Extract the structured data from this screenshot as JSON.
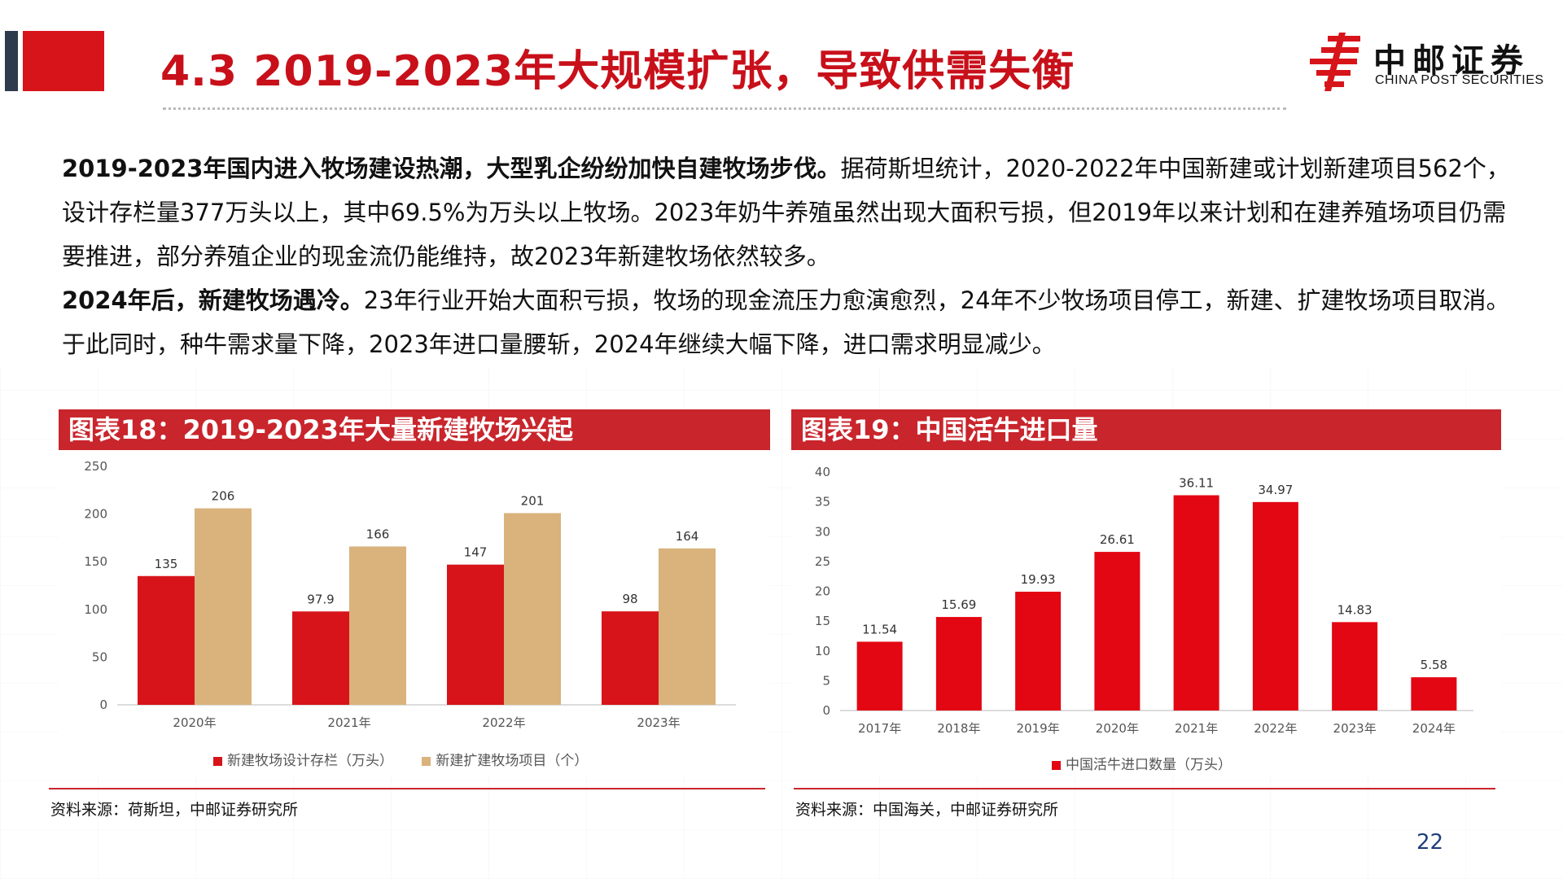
{
  "header": {
    "title": "4.3 2019-2023年大规模扩张，导致供需失衡",
    "brand_color": "#d7141a",
    "title_color": "#c8101a"
  },
  "logo": {
    "name_cn": "中邮证券",
    "name_en": "CHINA POST SECURITIES"
  },
  "body": {
    "p1_bold": "2019-2023年国内进入牧场建设热潮，大型乳企纷纷加快自建牧场步伐。",
    "p1_text": "据荷斯坦统计，2020-2022年中国新建或计划新建项目562个，设计存栏量377万头以上，其中69.5%为万头以上牧场。2023年奶牛养殖虽然出现大面积亏损，但2019年以来计划和在建养殖场项目仍需要推进，部分养殖企业的现金流仍能维持，故2023年新建牧场依然较多。",
    "p2_bold": "2024年后，新建牧场遇冷。",
    "p2_text": "23年行业开始大面积亏损，牧场的现金流压力愈演愈烈，24年不少牧场项目停工，新建、扩建牧场项目取消。于此同时，种牛需求量下降，2023年进口量腰斩，2024年继续大幅下降，进口需求明显减少。"
  },
  "chart18": {
    "header": "图表18：2019-2023年大量新建牧场兴起",
    "legend": [
      "新建牧场设计存栏（万头）",
      "新建扩建牧场项目（个）"
    ],
    "source": "资料来源：荷斯坦，中邮证券研究所"
  },
  "chart19": {
    "header": "图表19：中国活牛进口量",
    "legend": [
      "中国活牛进口数量（万头）"
    ],
    "source": "资料来源：中国海关，中邮证券研究所"
  },
  "page_number": "22",
  "chart_data": [
    {
      "type": "bar",
      "categories": [
        "2020年",
        "2021年",
        "2022年",
        "2023年"
      ],
      "series": [
        {
          "name": "新建牧场设计存栏（万头）",
          "values": [
            135,
            97.9,
            147,
            98
          ],
          "labels": [
            "135",
            "97.9",
            "147",
            "98"
          ],
          "color": "#d7141a"
        },
        {
          "name": "新建扩建牧场项目（个）",
          "values": [
            206,
            166,
            201,
            164
          ],
          "labels": [
            "206",
            "166",
            "201",
            "164"
          ],
          "color": "#d9b27c"
        }
      ],
      "title": "图表18：2019-2023年大量新建牧场兴起",
      "ylim": [
        0,
        250
      ],
      "yticks": [
        0,
        50,
        100,
        150,
        200,
        250
      ],
      "grid": false,
      "legend_position": "bottom"
    },
    {
      "type": "bar",
      "categories": [
        "2017年",
        "2018年",
        "2019年",
        "2020年",
        "2021年",
        "2022年",
        "2023年",
        "2024年"
      ],
      "series": [
        {
          "name": "中国活牛进口数量（万头）",
          "values": [
            11.54,
            15.69,
            19.93,
            26.61,
            36.11,
            34.97,
            14.83,
            5.58
          ],
          "labels": [
            "11.54",
            "15.69",
            "19.93",
            "26.61",
            "36.11",
            "34.97",
            "14.83",
            "5.58"
          ],
          "color": "#e30613"
        }
      ],
      "title": "图表19：中国活牛进口量",
      "ylim": [
        0,
        40
      ],
      "yticks": [
        0,
        5,
        10,
        15,
        20,
        25,
        30,
        35,
        40
      ],
      "grid": false,
      "legend_position": "bottom"
    }
  ]
}
